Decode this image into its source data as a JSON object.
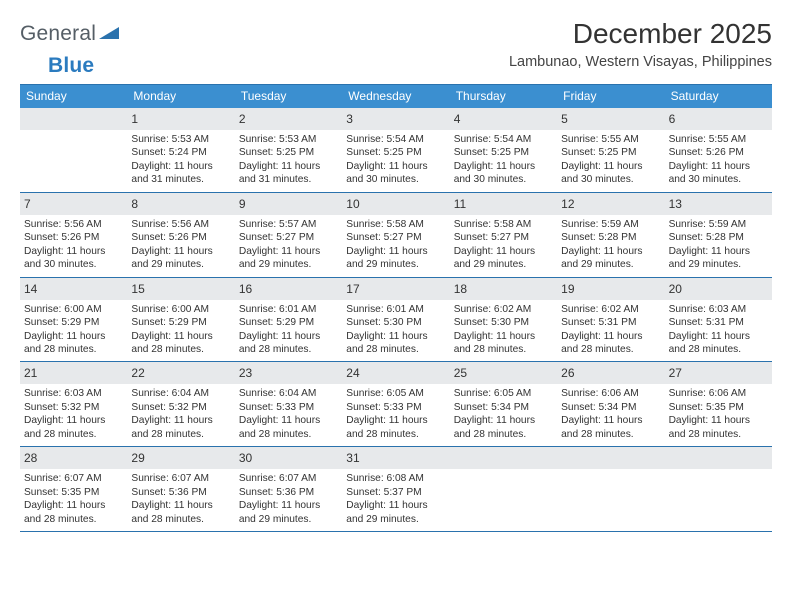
{
  "brand": {
    "part1": "General",
    "part2": "Blue"
  },
  "title": "December 2025",
  "location": "Lambunao, Western Visayas, Philippines",
  "styling": {
    "header_bg": "#3b8fd0",
    "header_text": "#ffffff",
    "rule_color": "#2a72ad",
    "daynum_bg": "#e7e9eb",
    "body_text": "#333333",
    "page_bg": "#ffffff",
    "title_fontsize": 28,
    "location_fontsize": 14.5,
    "dayheader_fontsize": 12,
    "cell_fontsize": 10.2,
    "columns": 7,
    "rows": 5
  },
  "day_names": [
    "Sunday",
    "Monday",
    "Tuesday",
    "Wednesday",
    "Thursday",
    "Friday",
    "Saturday"
  ],
  "weeks": [
    [
      {
        "n": "",
        "sr": "",
        "ss": "",
        "dl": ""
      },
      {
        "n": "1",
        "sr": "Sunrise: 5:53 AM",
        "ss": "Sunset: 5:24 PM",
        "dl": "Daylight: 11 hours and 31 minutes."
      },
      {
        "n": "2",
        "sr": "Sunrise: 5:53 AM",
        "ss": "Sunset: 5:25 PM",
        "dl": "Daylight: 11 hours and 31 minutes."
      },
      {
        "n": "3",
        "sr": "Sunrise: 5:54 AM",
        "ss": "Sunset: 5:25 PM",
        "dl": "Daylight: 11 hours and 30 minutes."
      },
      {
        "n": "4",
        "sr": "Sunrise: 5:54 AM",
        "ss": "Sunset: 5:25 PM",
        "dl": "Daylight: 11 hours and 30 minutes."
      },
      {
        "n": "5",
        "sr": "Sunrise: 5:55 AM",
        "ss": "Sunset: 5:25 PM",
        "dl": "Daylight: 11 hours and 30 minutes."
      },
      {
        "n": "6",
        "sr": "Sunrise: 5:55 AM",
        "ss": "Sunset: 5:26 PM",
        "dl": "Daylight: 11 hours and 30 minutes."
      }
    ],
    [
      {
        "n": "7",
        "sr": "Sunrise: 5:56 AM",
        "ss": "Sunset: 5:26 PM",
        "dl": "Daylight: 11 hours and 30 minutes."
      },
      {
        "n": "8",
        "sr": "Sunrise: 5:56 AM",
        "ss": "Sunset: 5:26 PM",
        "dl": "Daylight: 11 hours and 29 minutes."
      },
      {
        "n": "9",
        "sr": "Sunrise: 5:57 AM",
        "ss": "Sunset: 5:27 PM",
        "dl": "Daylight: 11 hours and 29 minutes."
      },
      {
        "n": "10",
        "sr": "Sunrise: 5:58 AM",
        "ss": "Sunset: 5:27 PM",
        "dl": "Daylight: 11 hours and 29 minutes."
      },
      {
        "n": "11",
        "sr": "Sunrise: 5:58 AM",
        "ss": "Sunset: 5:27 PM",
        "dl": "Daylight: 11 hours and 29 minutes."
      },
      {
        "n": "12",
        "sr": "Sunrise: 5:59 AM",
        "ss": "Sunset: 5:28 PM",
        "dl": "Daylight: 11 hours and 29 minutes."
      },
      {
        "n": "13",
        "sr": "Sunrise: 5:59 AM",
        "ss": "Sunset: 5:28 PM",
        "dl": "Daylight: 11 hours and 29 minutes."
      }
    ],
    [
      {
        "n": "14",
        "sr": "Sunrise: 6:00 AM",
        "ss": "Sunset: 5:29 PM",
        "dl": "Daylight: 11 hours and 28 minutes."
      },
      {
        "n": "15",
        "sr": "Sunrise: 6:00 AM",
        "ss": "Sunset: 5:29 PM",
        "dl": "Daylight: 11 hours and 28 minutes."
      },
      {
        "n": "16",
        "sr": "Sunrise: 6:01 AM",
        "ss": "Sunset: 5:29 PM",
        "dl": "Daylight: 11 hours and 28 minutes."
      },
      {
        "n": "17",
        "sr": "Sunrise: 6:01 AM",
        "ss": "Sunset: 5:30 PM",
        "dl": "Daylight: 11 hours and 28 minutes."
      },
      {
        "n": "18",
        "sr": "Sunrise: 6:02 AM",
        "ss": "Sunset: 5:30 PM",
        "dl": "Daylight: 11 hours and 28 minutes."
      },
      {
        "n": "19",
        "sr": "Sunrise: 6:02 AM",
        "ss": "Sunset: 5:31 PM",
        "dl": "Daylight: 11 hours and 28 minutes."
      },
      {
        "n": "20",
        "sr": "Sunrise: 6:03 AM",
        "ss": "Sunset: 5:31 PM",
        "dl": "Daylight: 11 hours and 28 minutes."
      }
    ],
    [
      {
        "n": "21",
        "sr": "Sunrise: 6:03 AM",
        "ss": "Sunset: 5:32 PM",
        "dl": "Daylight: 11 hours and 28 minutes."
      },
      {
        "n": "22",
        "sr": "Sunrise: 6:04 AM",
        "ss": "Sunset: 5:32 PM",
        "dl": "Daylight: 11 hours and 28 minutes."
      },
      {
        "n": "23",
        "sr": "Sunrise: 6:04 AM",
        "ss": "Sunset: 5:33 PM",
        "dl": "Daylight: 11 hours and 28 minutes."
      },
      {
        "n": "24",
        "sr": "Sunrise: 6:05 AM",
        "ss": "Sunset: 5:33 PM",
        "dl": "Daylight: 11 hours and 28 minutes."
      },
      {
        "n": "25",
        "sr": "Sunrise: 6:05 AM",
        "ss": "Sunset: 5:34 PM",
        "dl": "Daylight: 11 hours and 28 minutes."
      },
      {
        "n": "26",
        "sr": "Sunrise: 6:06 AM",
        "ss": "Sunset: 5:34 PM",
        "dl": "Daylight: 11 hours and 28 minutes."
      },
      {
        "n": "27",
        "sr": "Sunrise: 6:06 AM",
        "ss": "Sunset: 5:35 PM",
        "dl": "Daylight: 11 hours and 28 minutes."
      }
    ],
    [
      {
        "n": "28",
        "sr": "Sunrise: 6:07 AM",
        "ss": "Sunset: 5:35 PM",
        "dl": "Daylight: 11 hours and 28 minutes."
      },
      {
        "n": "29",
        "sr": "Sunrise: 6:07 AM",
        "ss": "Sunset: 5:36 PM",
        "dl": "Daylight: 11 hours and 28 minutes."
      },
      {
        "n": "30",
        "sr": "Sunrise: 6:07 AM",
        "ss": "Sunset: 5:36 PM",
        "dl": "Daylight: 11 hours and 29 minutes."
      },
      {
        "n": "31",
        "sr": "Sunrise: 6:08 AM",
        "ss": "Sunset: 5:37 PM",
        "dl": "Daylight: 11 hours and 29 minutes."
      },
      {
        "n": "",
        "sr": "",
        "ss": "",
        "dl": ""
      },
      {
        "n": "",
        "sr": "",
        "ss": "",
        "dl": ""
      },
      {
        "n": "",
        "sr": "",
        "ss": "",
        "dl": ""
      }
    ]
  ]
}
